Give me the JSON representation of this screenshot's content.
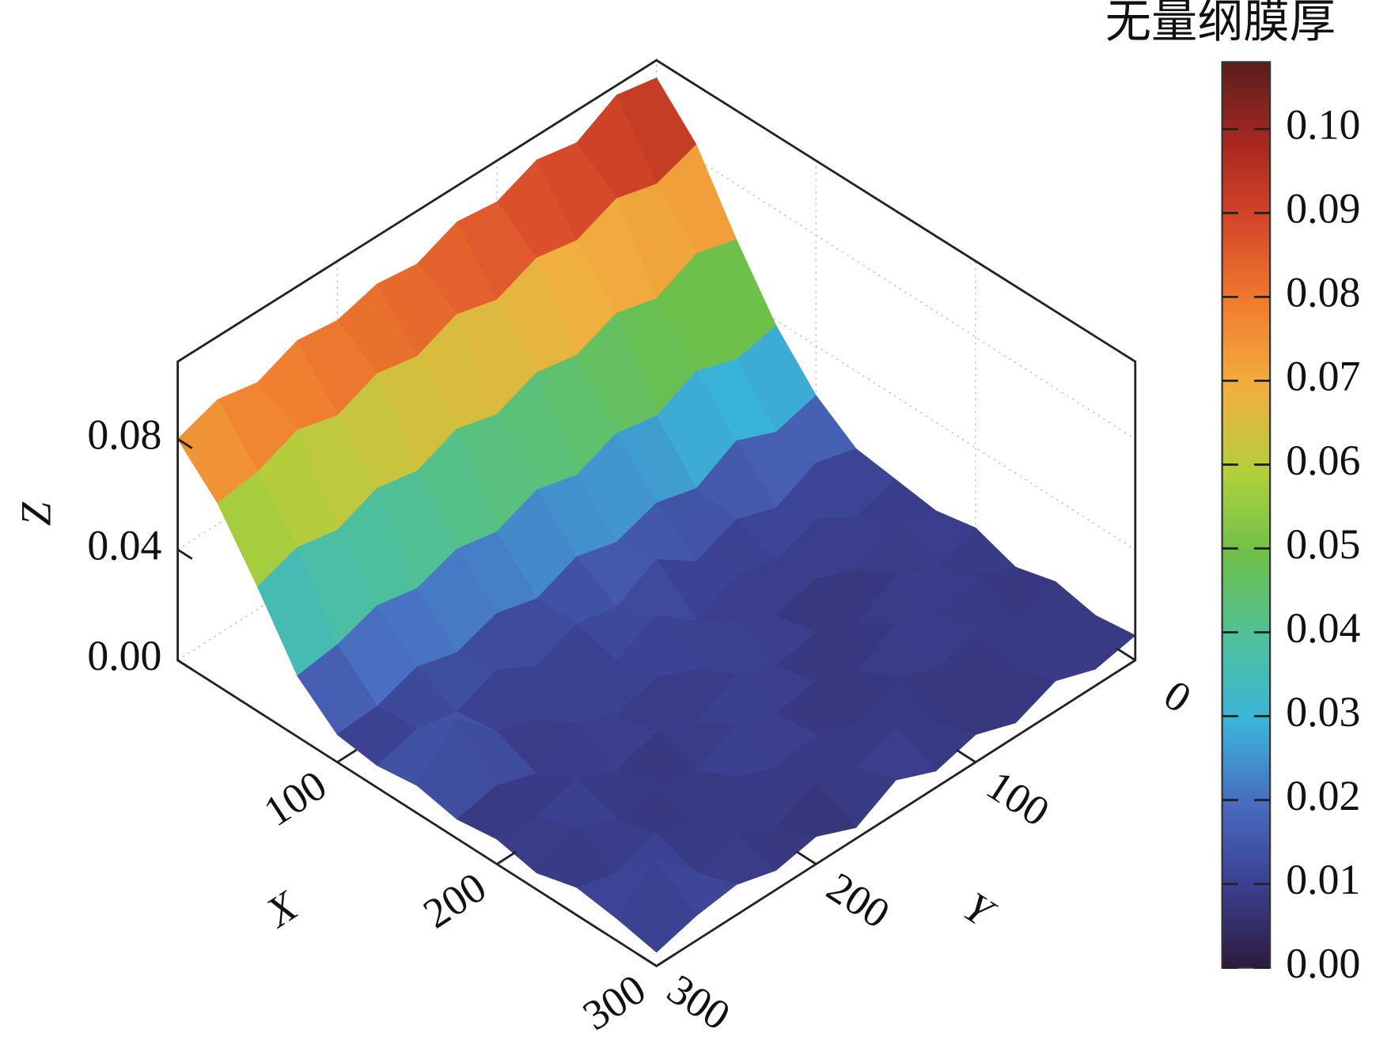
{
  "chart_data": {
    "type": "surface3d",
    "colorbar_title": "无量纲膜厚",
    "xlabel": "X",
    "ylabel": "Y",
    "zlabel": "Z",
    "x": [
      0,
      25,
      50,
      75,
      100,
      125,
      150,
      175,
      200,
      225,
      250,
      275,
      300
    ],
    "y": [
      0,
      25,
      50,
      75,
      100,
      125,
      150,
      175,
      200,
      225,
      250,
      275,
      300
    ],
    "z": [
      [
        0.1,
        0.103,
        0.095,
        0.098,
        0.092,
        0.094,
        0.088,
        0.09,
        0.086,
        0.088,
        0.082,
        0.085,
        0.08
      ],
      [
        0.085,
        0.08,
        0.084,
        0.078,
        0.081,
        0.075,
        0.079,
        0.073,
        0.076,
        0.07,
        0.074,
        0.068,
        0.066
      ],
      [
        0.06,
        0.064,
        0.057,
        0.061,
        0.055,
        0.058,
        0.052,
        0.056,
        0.05,
        0.053,
        0.047,
        0.05,
        0.045
      ],
      [
        0.038,
        0.035,
        0.04,
        0.033,
        0.036,
        0.03,
        0.034,
        0.028,
        0.031,
        0.026,
        0.029,
        0.024,
        0.022
      ],
      [
        0.022,
        0.018,
        0.024,
        0.016,
        0.02,
        0.015,
        0.019,
        0.013,
        0.017,
        0.012,
        0.016,
        0.011,
        0.01
      ],
      [
        0.012,
        0.016,
        0.009,
        0.014,
        0.008,
        0.018,
        0.01,
        0.013,
        0.007,
        0.015,
        0.009,
        0.012,
        0.008
      ],
      [
        0.01,
        0.006,
        0.014,
        0.008,
        0.012,
        0.005,
        0.016,
        0.009,
        0.013,
        0.006,
        0.011,
        0.025,
        0.01
      ],
      [
        0.008,
        0.013,
        0.005,
        0.011,
        0.007,
        0.015,
        0.006,
        0.012,
        0.008,
        0.014,
        0.005,
        0.01,
        0.007
      ],
      [
        0.011,
        0.006,
        0.012,
        0.004,
        0.01,
        0.007,
        0.013,
        0.005,
        0.011,
        0.006,
        0.012,
        0.008,
        0.009
      ],
      [
        0.006,
        0.012,
        0.007,
        0.013,
        0.005,
        0.011,
        0.008,
        0.014,
        0.006,
        0.01,
        0.007,
        0.013,
        0.006
      ],
      [
        0.01,
        0.005,
        0.011,
        0.006,
        0.012,
        0.004,
        0.01,
        0.007,
        0.013,
        0.005,
        0.011,
        0.006,
        0.01
      ],
      [
        0.007,
        0.012,
        0.006,
        0.01,
        0.005,
        0.013,
        0.007,
        0.011,
        0.004,
        0.012,
        0.006,
        0.02,
        0.008
      ],
      [
        0.009,
        0.006,
        0.011,
        0.005,
        0.01,
        0.006,
        0.012,
        0.004,
        0.01,
        0.007,
        0.011,
        0.009,
        0.005
      ]
    ],
    "xlim": [
      0,
      300
    ],
    "ylim": [
      0,
      300
    ],
    "zlim": [
      0,
      0.108
    ],
    "xticks": [
      100,
      200,
      300
    ],
    "yticks": [
      0,
      100,
      200,
      300
    ],
    "zticks": [
      {
        "value": 0,
        "label": "0.00"
      },
      {
        "value": 0.04,
        "label": "0.04"
      },
      {
        "value": 0.08,
        "label": "0.08"
      }
    ],
    "colorbar_ticks": [
      {
        "value": 0,
        "label": "0.00"
      },
      {
        "value": 0.01,
        "label": "0.01"
      },
      {
        "value": 0.02,
        "label": "0.02"
      },
      {
        "value": 0.03,
        "label": "0.03"
      },
      {
        "value": 0.04,
        "label": "0.04"
      },
      {
        "value": 0.05,
        "label": "0.05"
      },
      {
        "value": 0.06,
        "label": "0.06"
      },
      {
        "value": 0.07,
        "label": "0.07"
      },
      {
        "value": 0.08,
        "label": "0.08"
      },
      {
        "value": 0.09,
        "label": "0.09"
      },
      {
        "value": 0.1,
        "label": "0.10"
      }
    ],
    "colorscale": [
      "#2d1b3d",
      "#3b3f8f",
      "#4a6cc0",
      "#3ab5d8",
      "#4fc09a",
      "#6cc04a",
      "#b0d03c",
      "#f0b040",
      "#f08030",
      "#d84a2a",
      "#a82820",
      "#5a1e1e"
    ],
    "grid": true
  }
}
